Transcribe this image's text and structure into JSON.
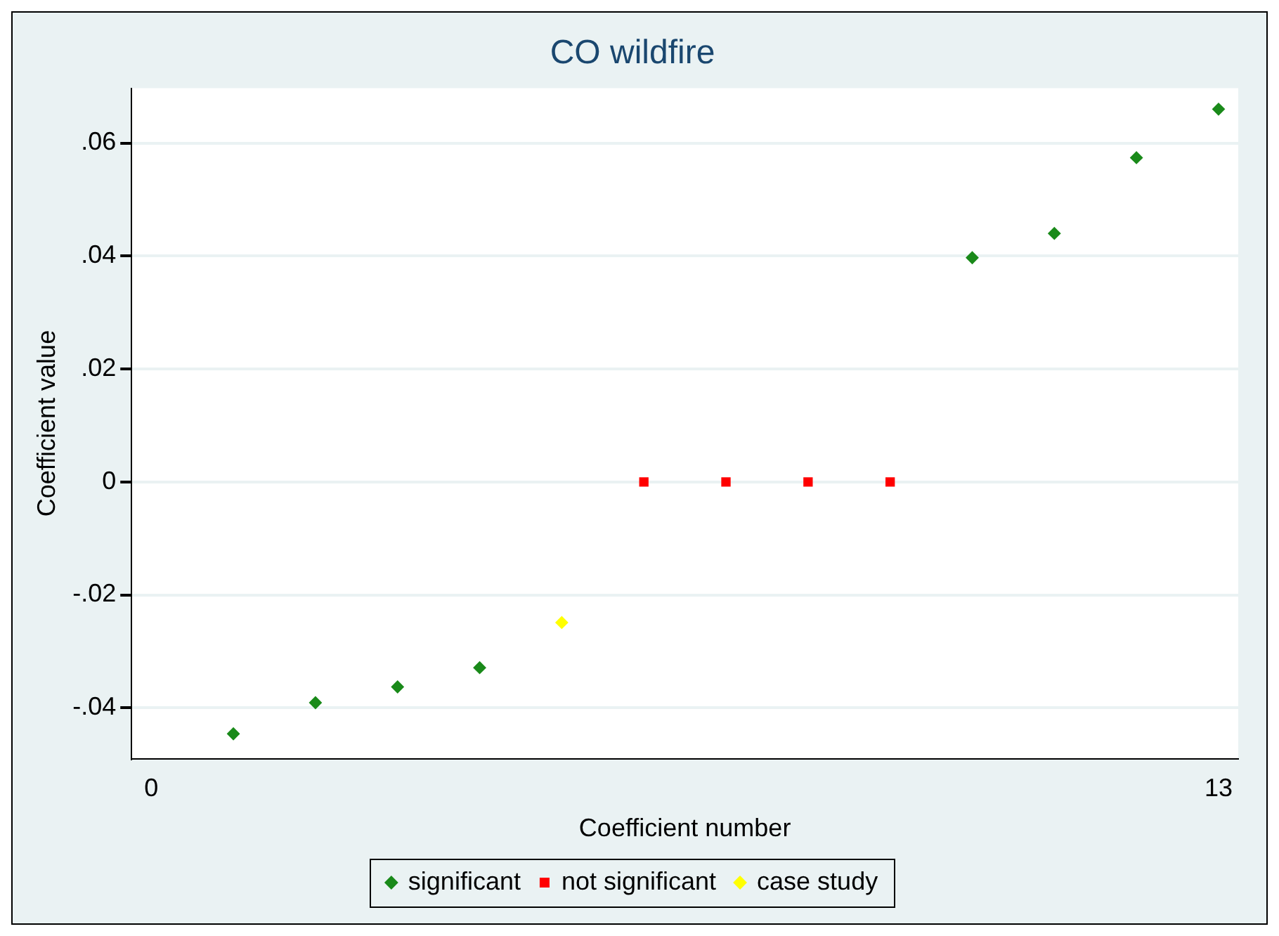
{
  "chart_data": {
    "type": "scatter",
    "title": "CO wildfire",
    "xlabel": "Coefficient number",
    "ylabel": "Coefficient value",
    "series": [
      {
        "name": "significant",
        "color": "#1a8a1a",
        "marker": "diamond",
        "x": [
          1,
          2,
          3,
          4,
          10,
          11,
          12,
          13
        ],
        "values": [
          -0.0446,
          -0.0391,
          -0.0363,
          -0.0329,
          0.0397,
          0.044,
          0.0574,
          0.066
        ]
      },
      {
        "name": "not significant",
        "color": "#ff0000",
        "marker": "square",
        "x": [
          6,
          7,
          8,
          9
        ],
        "values": [
          0,
          0,
          0,
          0
        ]
      },
      {
        "name": "case study",
        "color": "#ffff00",
        "marker": "diamond",
        "x": [
          5
        ],
        "values": [
          -0.0249
        ]
      }
    ],
    "xlim": [
      -0.24,
      13.24
    ],
    "xticks": [
      0,
      13
    ],
    "ylim": [
      -0.049,
      0.0697
    ],
    "yticks": [
      {
        "value": -0.04,
        "label": "-.04"
      },
      {
        "value": -0.02,
        "label": "-.02"
      },
      0,
      {
        "value": 0.02,
        "label": ".02"
      },
      {
        "value": 0.04,
        "label": ".04"
      },
      {
        "value": 0.06,
        "label": ".06"
      }
    ],
    "grid": "y",
    "legend": "bottom"
  }
}
